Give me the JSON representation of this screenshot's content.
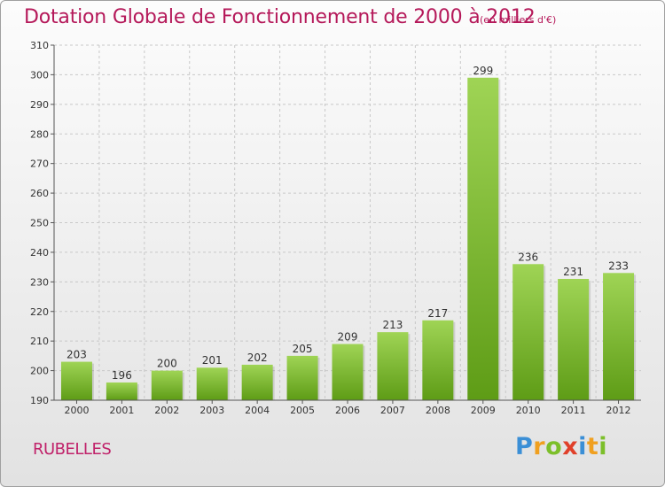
{
  "header": {
    "title": "Dotation Globale de Fonctionnement de 2000 à 2012",
    "unit": "(en milliers d'€)"
  },
  "footer": {
    "commune": "RUBELLES",
    "logo_text": "Proxiti",
    "logo_letters": [
      {
        "ch": "P",
        "color": "#3b8fd6"
      },
      {
        "ch": "r",
        "color": "#f0a020"
      },
      {
        "ch": "o",
        "color": "#7cbf2a"
      },
      {
        "ch": "x",
        "color": "#e0402a"
      },
      {
        "ch": "i",
        "color": "#3b8fd6"
      },
      {
        "ch": "t",
        "color": "#f0a020"
      },
      {
        "ch": "i",
        "color": "#7cbf2a"
      }
    ]
  },
  "colors": {
    "title": "#b5195a",
    "bar_top": "#9fd455",
    "bar_bottom": "#5e9c16",
    "grid": "#c8c8c8",
    "axis": "#555555"
  },
  "chart_data": {
    "type": "bar",
    "title": "Dotation Globale de Fonctionnement de 2000 à 2012",
    "subtitle": "(en milliers d'€)",
    "xlabel": "",
    "ylabel": "",
    "categories": [
      "2000",
      "2001",
      "2002",
      "2003",
      "2004",
      "2005",
      "2006",
      "2007",
      "2008",
      "2009",
      "2010",
      "2011",
      "2012"
    ],
    "values": [
      203,
      196,
      200,
      201,
      202,
      205,
      209,
      213,
      217,
      299,
      236,
      231,
      233
    ],
    "ylim": [
      190,
      310
    ],
    "yticks": [
      190,
      200,
      210,
      220,
      230,
      240,
      250,
      260,
      270,
      280,
      290,
      300,
      310
    ],
    "grid": "horizontal dashed",
    "legend": "none",
    "data_labels": true
  }
}
